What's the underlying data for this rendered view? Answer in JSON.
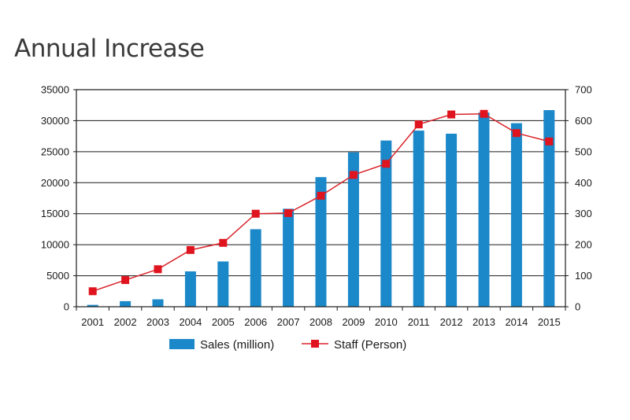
{
  "title": "Annual Increase",
  "chart_data": {
    "type": "bar",
    "categories": [
      "2001",
      "2002",
      "2003",
      "2004",
      "2005",
      "2006",
      "2007",
      "2008",
      "2009",
      "2010",
      "2011",
      "2012",
      "2013",
      "2014",
      "2015"
    ],
    "series": [
      {
        "name": "Sales (million)",
        "type": "bar",
        "axis": "left",
        "color": "#1b88c9",
        "values": [
          300,
          900,
          1200,
          5700,
          7300,
          12500,
          15800,
          20900,
          24900,
          26800,
          28400,
          27900,
          31300,
          29600,
          31700
        ]
      },
      {
        "name": "Staff (Person)",
        "type": "line",
        "axis": "right",
        "color": "#d9232a",
        "values": [
          50,
          86,
          121,
          183,
          206,
          300,
          302,
          358,
          425,
          461,
          588,
          620,
          622,
          560,
          533
        ]
      }
    ],
    "y_left": {
      "min": 0,
      "max": 35000,
      "step": 5000
    },
    "y_right": {
      "min": 0,
      "max": 700,
      "step": 100
    },
    "grid": true,
    "legend": "bottom"
  }
}
